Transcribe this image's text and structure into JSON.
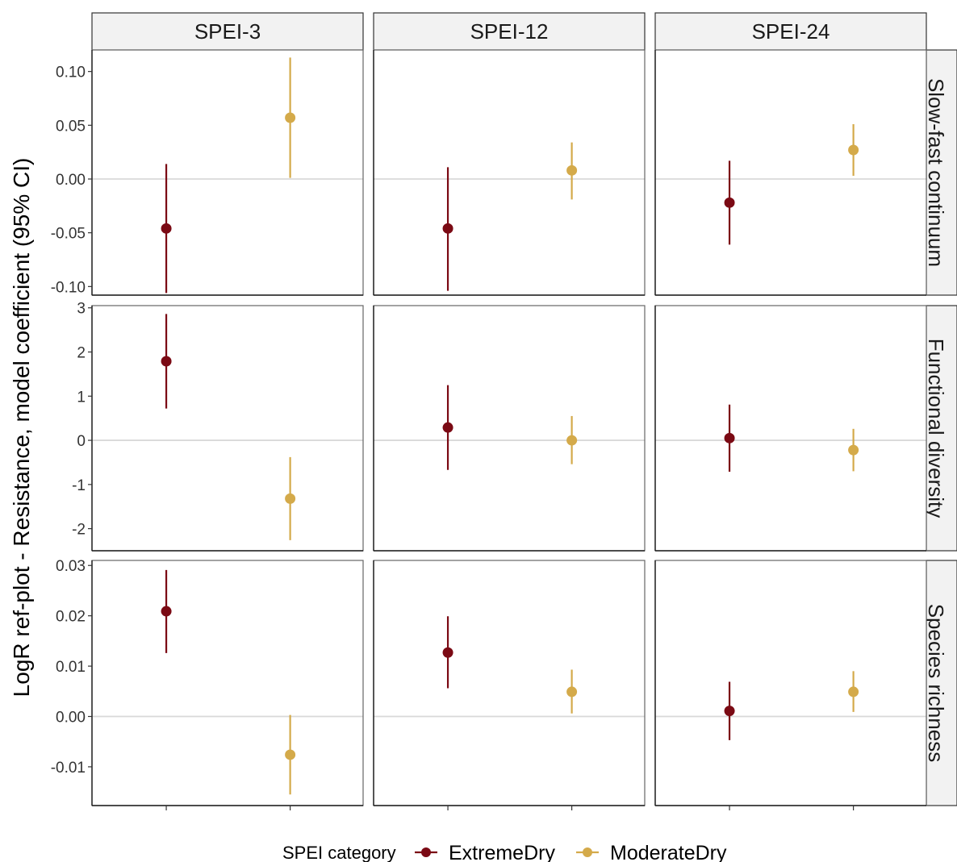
{
  "chart_data": {
    "type": "scatter",
    "subtype": "point-range facet grid",
    "ylabel": "LogR ref-plot - Resistance, model coefficient (95% CI)",
    "xlabel": "",
    "columns": [
      "SPEI-3",
      "SPEI-12",
      "SPEI-24"
    ],
    "rows": [
      {
        "name": "Slow-fast continuum",
        "ylim": [
          -0.108,
          0.12
        ],
        "ticks": [
          0.1,
          0.05,
          0.0,
          -0.05,
          -0.1
        ],
        "tick_labels": [
          "0.10",
          "0.05",
          "0.00",
          "-0.05",
          "-0.10"
        ]
      },
      {
        "name": "Functional diversity",
        "ylim": [
          -2.5,
          3.05
        ],
        "ticks": [
          3,
          2,
          1,
          0,
          -1,
          -2
        ],
        "tick_labels": [
          "3",
          "2",
          "1",
          "0",
          "-1",
          "-2"
        ]
      },
      {
        "name": "Species richness",
        "ylim": [
          -0.0177,
          0.031
        ],
        "ticks": [
          0.03,
          0.02,
          0.01,
          0.0,
          -0.01
        ],
        "tick_labels": [
          "0.03",
          "0.02",
          "0.01",
          "0.00",
          "-0.01"
        ]
      }
    ],
    "x_categories": [
      "ExtremeDry",
      "ModerateDry"
    ],
    "reference_line_y": 0,
    "grid": false,
    "legend": {
      "title": "SPEI category",
      "position": "bottom",
      "entries": [
        {
          "name": "ExtremeDry",
          "color": "#7b0a14"
        },
        {
          "name": "ModerateDry",
          "color": "#d4aa4a"
        }
      ]
    },
    "panels": [
      {
        "row": "Slow-fast continuum",
        "column": "SPEI-3",
        "points": [
          {
            "category": "ExtremeDry",
            "estimate": -0.046,
            "lower": -0.106,
            "upper": 0.014
          },
          {
            "category": "ModerateDry",
            "estimate": 0.057,
            "lower": 0.001,
            "upper": 0.113
          }
        ]
      },
      {
        "row": "Slow-fast continuum",
        "column": "SPEI-12",
        "points": [
          {
            "category": "ExtremeDry",
            "estimate": -0.046,
            "lower": -0.104,
            "upper": 0.011
          },
          {
            "category": "ModerateDry",
            "estimate": 0.008,
            "lower": -0.019,
            "upper": 0.034
          }
        ]
      },
      {
        "row": "Slow-fast continuum",
        "column": "SPEI-24",
        "points": [
          {
            "category": "ExtremeDry",
            "estimate": -0.022,
            "lower": -0.061,
            "upper": 0.017
          },
          {
            "category": "ModerateDry",
            "estimate": 0.027,
            "lower": 0.003,
            "upper": 0.051
          }
        ]
      },
      {
        "row": "Functional diversity",
        "column": "SPEI-3",
        "points": [
          {
            "category": "ExtremeDry",
            "estimate": 1.79,
            "lower": 0.72,
            "upper": 2.86
          },
          {
            "category": "ModerateDry",
            "estimate": -1.32,
            "lower": -2.26,
            "upper": -0.38
          }
        ]
      },
      {
        "row": "Functional diversity",
        "column": "SPEI-12",
        "points": [
          {
            "category": "ExtremeDry",
            "estimate": 0.29,
            "lower": -0.67,
            "upper": 1.25
          },
          {
            "category": "ModerateDry",
            "estimate": 0.0,
            "lower": -0.54,
            "upper": 0.55
          }
        ]
      },
      {
        "row": "Functional diversity",
        "column": "SPEI-24",
        "points": [
          {
            "category": "ExtremeDry",
            "estimate": 0.05,
            "lower": -0.71,
            "upper": 0.81
          },
          {
            "category": "ModerateDry",
            "estimate": -0.22,
            "lower": -0.7,
            "upper": 0.26
          }
        ]
      },
      {
        "row": "Species richness",
        "column": "SPEI-3",
        "points": [
          {
            "category": "ExtremeDry",
            "estimate": 0.0209,
            "lower": 0.0126,
            "upper": 0.0291
          },
          {
            "category": "ModerateDry",
            "estimate": -0.0076,
            "lower": -0.0155,
            "upper": 0.0003
          }
        ]
      },
      {
        "row": "Species richness",
        "column": "SPEI-12",
        "points": [
          {
            "category": "ExtremeDry",
            "estimate": 0.0127,
            "lower": 0.0056,
            "upper": 0.0199
          },
          {
            "category": "ModerateDry",
            "estimate": 0.0049,
            "lower": 0.0006,
            "upper": 0.0093
          }
        ]
      },
      {
        "row": "Species richness",
        "column": "SPEI-24",
        "points": [
          {
            "category": "ExtremeDry",
            "estimate": 0.0011,
            "lower": -0.0047,
            "upper": 0.0069
          },
          {
            "category": "ModerateDry",
            "estimate": 0.0049,
            "lower": 0.0009,
            "upper": 0.009
          }
        ]
      }
    ]
  }
}
